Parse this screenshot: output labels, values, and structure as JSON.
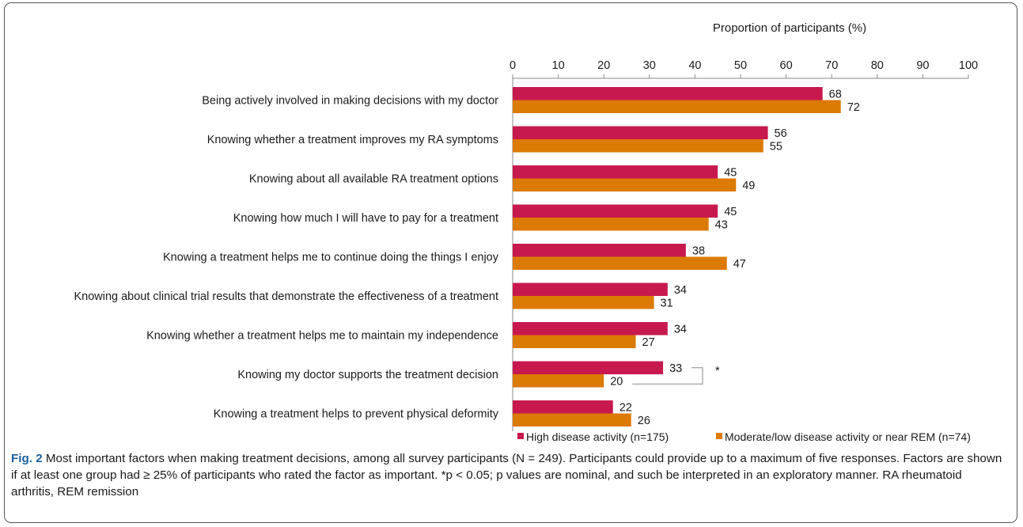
{
  "chart_data": {
    "type": "bar",
    "orientation": "horizontal",
    "title": "",
    "xlabel": "Proportion of participants (%)",
    "ylabel": "",
    "xlim": [
      0,
      100
    ],
    "ticks": [
      0,
      10,
      20,
      30,
      40,
      50,
      60,
      70,
      80,
      90,
      100
    ],
    "categories": [
      "Being actively involved in making decisions with my doctor",
      "Knowing whether a treatment improves my RA symptoms",
      "Knowing about all available RA treatment options",
      "Knowing how much I will have to pay for a treatment",
      "Knowing a treatment helps me to continue doing the things I enjoy",
      "Knowing about clinical trial results that demonstrate the effectiveness of a treatment",
      "Knowing whether a treatment helps me to maintain my independence",
      "Knowing my doctor supports the treatment decision",
      "Knowing a treatment helps to prevent physical deformity"
    ],
    "series": [
      {
        "name": "High disease activity (n=175)",
        "color": "#c8194e",
        "values": [
          68,
          56,
          45,
          45,
          38,
          34,
          34,
          33,
          22
        ]
      },
      {
        "name": "Moderate/low disease activity or near REM (n=74)",
        "color": "#dc7a06",
        "values": [
          72,
          55,
          49,
          43,
          47,
          31,
          27,
          20,
          26
        ]
      }
    ],
    "annotations": [
      {
        "category_index": 7,
        "text": "*"
      }
    ],
    "legend_position": "bottom-right",
    "grid": false
  },
  "caption": {
    "label": "Fig. 2",
    "text": "Most important factors when making treatment decisions, among all survey participants (N = 249). Participants could provide up to a maximum of five responses. Factors are shown if at least one group had ≥ 25% of participants who rated the factor as important. *p < 0.05; p values are nominal, and such be interpreted in an exploratory manner. RA rheumatoid arthritis, REM remission"
  }
}
